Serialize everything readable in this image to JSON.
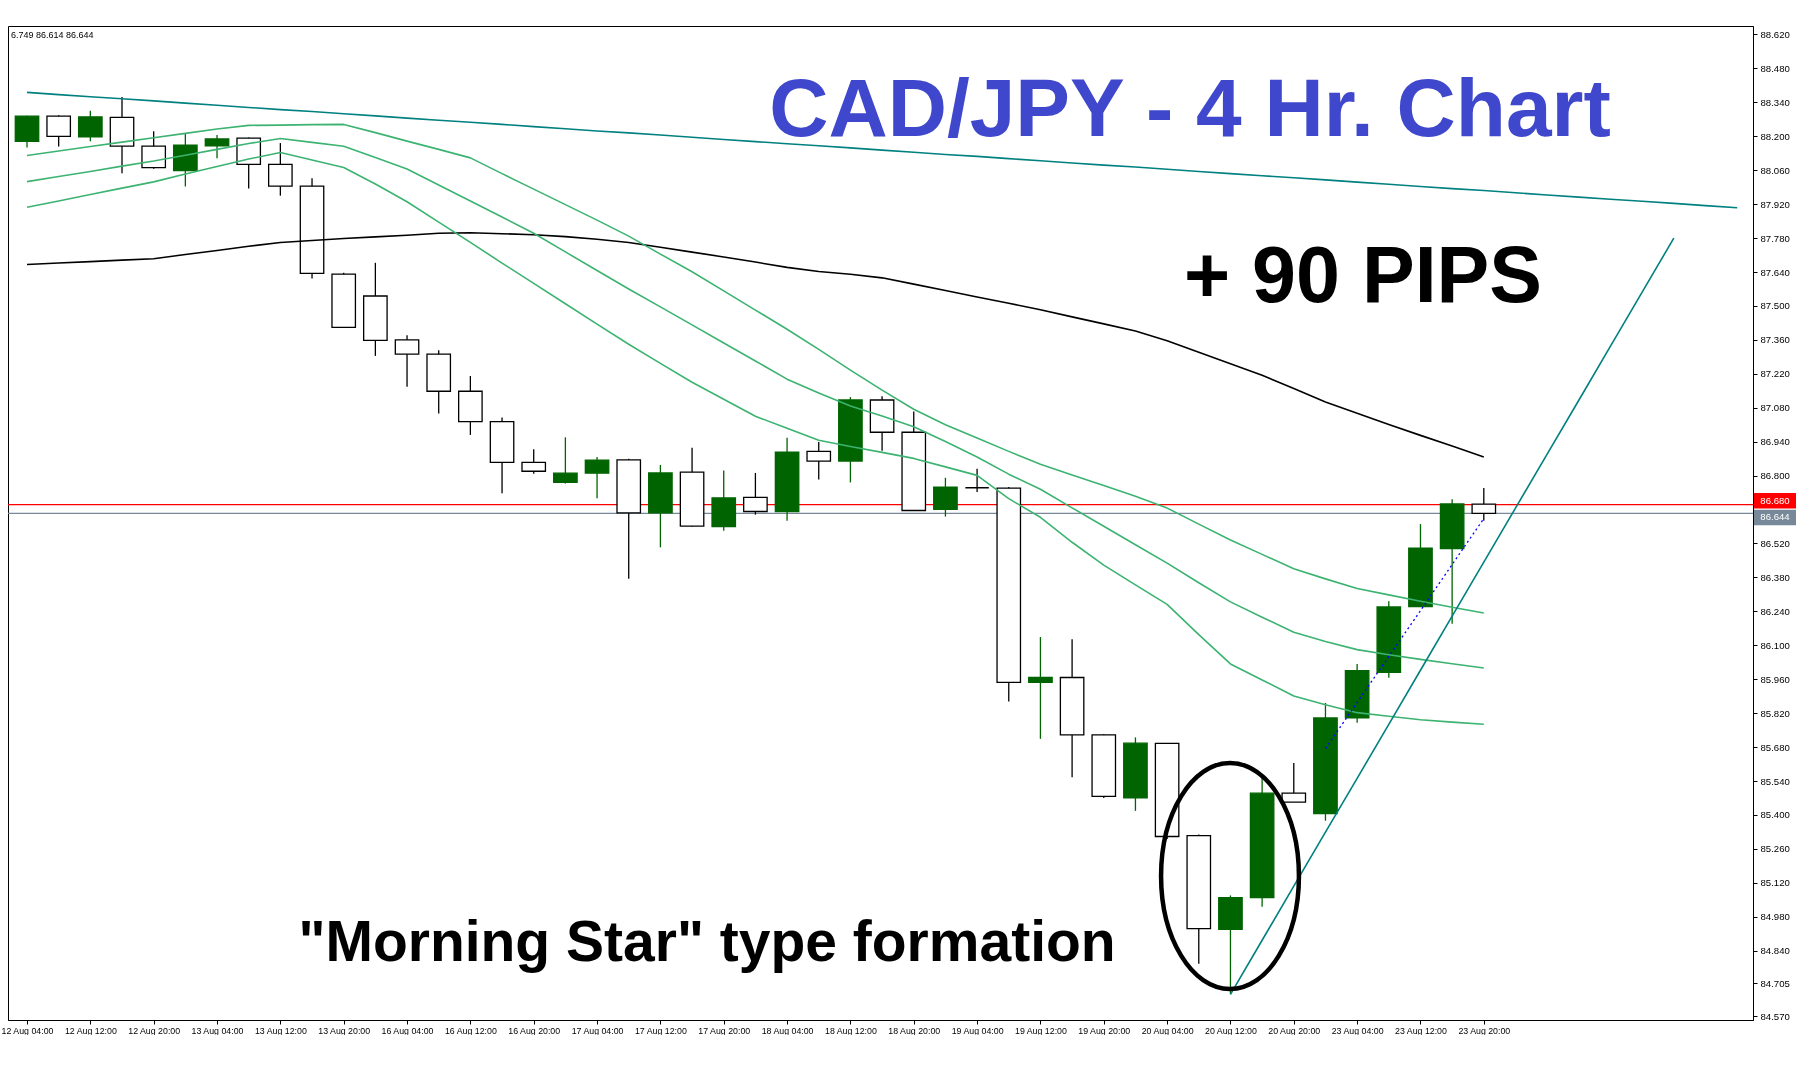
{
  "chart_data": {
    "type": "candlestick",
    "title": "CAD/JPY - 4 Hr. Chart",
    "categories": [
      "12 Aug 04:00",
      null,
      "12 Aug 12:00",
      null,
      "12 Aug 20:00",
      null,
      "13 Aug 04:00",
      null,
      "13 Aug 12:00",
      null,
      "13 Aug 20:00",
      null,
      "16 Aug 04:00",
      null,
      "16 Aug 12:00",
      null,
      "16 Aug 20:00",
      null,
      "17 Aug 04:00",
      null,
      "17 Aug 12:00",
      null,
      "17 Aug 20:00",
      null,
      "18 Aug 04:00",
      null,
      "18 Aug 12:00",
      null,
      "18 Aug 20:00",
      null,
      "19 Aug 04:00",
      null,
      "19 Aug 12:00",
      null,
      "19 Aug 20:00",
      null,
      "20 Aug 04:00",
      null,
      "20 Aug 12:00",
      null,
      "20 Aug 20:00",
      null,
      "23 Aug 04:00",
      null,
      "23 Aug 12:00",
      null,
      "23 Aug 20:00",
      null,
      null,
      null,
      null,
      null,
      null,
      null,
      null
    ],
    "ohlc": [
      [
        88.179,
        88.285,
        88.154,
        88.283
      ],
      [
        88.283,
        88.287,
        88.158,
        88.2
      ],
      [
        88.198,
        88.305,
        88.179,
        88.28
      ],
      [
        88.278,
        88.362,
        88.047,
        88.159
      ],
      [
        88.159,
        88.221,
        88.066,
        88.071
      ],
      [
        88.058,
        88.21,
        87.993,
        88.163
      ],
      [
        88.161,
        88.205,
        88.109,
        88.189
      ],
      [
        88.192,
        88.195,
        87.985,
        88.084
      ],
      [
        88.084,
        88.172,
        87.955,
        87.994
      ],
      [
        87.994,
        88.027,
        87.613,
        87.634
      ],
      [
        87.631,
        87.637,
        87.41,
        87.412
      ],
      [
        87.541,
        87.678,
        87.294,
        87.358
      ],
      [
        87.36,
        87.379,
        87.167,
        87.301
      ],
      [
        87.301,
        87.317,
        87.056,
        87.148
      ],
      [
        87.148,
        87.211,
        86.968,
        87.023
      ],
      [
        87.023,
        87.04,
        86.727,
        86.855
      ],
      [
        86.855,
        86.909,
        86.808,
        86.818
      ],
      [
        86.772,
        86.958,
        86.767,
        86.81
      ],
      [
        86.81,
        86.877,
        86.707,
        86.864
      ],
      [
        86.865,
        86.87,
        86.375,
        86.646
      ],
      [
        86.646,
        86.844,
        86.504,
        86.811
      ],
      [
        86.814,
        86.915,
        86.59,
        86.592
      ],
      [
        86.59,
        86.821,
        86.573,
        86.708
      ],
      [
        86.71,
        86.811,
        86.639,
        86.652
      ],
      [
        86.652,
        86.956,
        86.614,
        86.897
      ],
      [
        86.9,
        86.939,
        86.784,
        86.86
      ],
      [
        86.86,
        87.124,
        86.772,
        87.112
      ],
      [
        87.112,
        87.127,
        86.903,
        86.979
      ],
      [
        86.979,
        87.065,
        86.654,
        86.656
      ],
      [
        86.661,
        86.791,
        86.631,
        86.752
      ],
      [
        86.75,
        86.828,
        86.732,
        86.75
      ],
      [
        86.748,
        86.753,
        85.868,
        85.947
      ],
      [
        85.947,
        86.134,
        85.714,
        85.967
      ],
      [
        85.967,
        86.125,
        85.556,
        85.73
      ],
      [
        85.73,
        85.733,
        85.47,
        85.477
      ],
      [
        85.471,
        85.72,
        85.417,
        85.696
      ],
      [
        85.695,
        85.697,
        85.301,
        85.311
      ],
      [
        85.315,
        85.319,
        84.786,
        84.931
      ],
      [
        84.928,
        85.068,
        84.66,
        85.059
      ],
      [
        85.059,
        85.557,
        85.021,
        85.49
      ],
      [
        85.49,
        85.614,
        85.453,
        85.453
      ],
      [
        85.406,
        85.862,
        85.376,
        85.8
      ],
      [
        85.801,
        86.023,
        85.78,
        85.995
      ],
      [
        85.988,
        86.282,
        85.966,
        86.258
      ],
      [
        86.26,
        86.6,
        86.258,
        86.501
      ],
      [
        86.499,
        86.703,
        86.189,
        86.683
      ],
      [
        86.682,
        86.749,
        86.614,
        86.644
      ],
      null,
      null,
      null,
      null,
      null,
      null,
      null,
      null
    ],
    "colors": [
      "#006400",
      "#ffffff",
      "#006400",
      "#ffffff",
      "#ffffff",
      "#006400",
      "#006400",
      "#ffffff",
      "#ffffff",
      "#ffffff",
      "#ffffff",
      "#ffffff",
      "#ffffff",
      "#ffffff",
      "#ffffff",
      "#ffffff",
      "#ffffff",
      "#006400",
      "#006400",
      "#ffffff",
      "#006400",
      "#ffffff",
      "#006400",
      "#ffffff",
      "#006400",
      "#ffffff",
      "#006400",
      "#ffffff",
      "#ffffff",
      "#006400",
      "#000000",
      "#ffffff",
      "#006400",
      "#ffffff",
      "#ffffff",
      "#006400",
      "#ffffff",
      "#ffffff",
      "#006400",
      "#006400",
      "#ffffff",
      "#006400",
      "#006400",
      "#006400",
      "#006400",
      "#006400",
      "#ffffff",
      null,
      null,
      null,
      null,
      null,
      null,
      null,
      null
    ],
    "series": [
      {
        "type": "line",
        "color": "#008080",
        "values": [
          88.381,
          88.372,
          88.363,
          88.355,
          88.346,
          88.337,
          88.328,
          88.319,
          88.31,
          88.302,
          88.293,
          88.284,
          88.275,
          88.266,
          88.258,
          88.249,
          88.24,
          88.231,
          88.222,
          88.214,
          88.205,
          88.196,
          88.187,
          88.178,
          88.169,
          88.161,
          88.152,
          88.143,
          88.134,
          88.125,
          88.117,
          88.108,
          88.099,
          88.09,
          88.081,
          88.073,
          88.064,
          88.055,
          88.046,
          88.037,
          88.029,
          88.02,
          88.011,
          88.002,
          87.993,
          87.984,
          87.976,
          87.967,
          87.958,
          87.949,
          87.94,
          87.932,
          87.923,
          87.914,
          87.905
        ]
      },
      {
        "type": "line",
        "color": "#000000",
        "values": [
          87.671,
          87.677,
          87.683,
          87.689,
          87.695,
          87.712,
          87.729,
          87.746,
          87.762,
          87.77,
          87.778,
          87.785,
          87.792,
          87.8,
          87.802,
          87.798,
          87.794,
          87.786,
          87.775,
          87.762,
          87.742,
          87.722,
          87.702,
          87.681,
          87.659,
          87.642,
          87.631,
          87.616,
          87.59,
          87.564,
          87.537,
          87.511,
          87.484,
          87.455,
          87.426,
          87.397,
          87.356,
          87.309,
          87.262,
          87.214,
          87.159,
          87.104,
          87.057,
          87.011,
          86.966,
          86.922,
          86.877,
          null,
          null,
          null,
          null,
          null,
          null,
          null,
          null
        ]
      },
      {
        "type": "line",
        "color": "#3cb371",
        "values": [
          88.121,
          88.139,
          88.158,
          88.176,
          88.194,
          88.212,
          88.23,
          88.245,
          88.246,
          88.248,
          88.249,
          88.215,
          88.18,
          88.146,
          88.111,
          88.046,
          87.982,
          87.918,
          87.854,
          87.788,
          87.714,
          87.641,
          87.562,
          87.483,
          87.404,
          87.321,
          87.235,
          87.153,
          87.074,
          87.01,
          86.955,
          86.9,
          86.847,
          86.803,
          86.759,
          86.715,
          86.666,
          86.6,
          86.534,
          86.475,
          86.416,
          86.374,
          86.334,
          86.308,
          86.282,
          86.257,
          86.233,
          null,
          null,
          null,
          null,
          null,
          null,
          null,
          null
        ]
      },
      {
        "type": "line",
        "color": "#3cb371",
        "values": [
          88.013,
          88.034,
          88.055,
          88.077,
          88.098,
          88.122,
          88.146,
          88.17,
          88.191,
          88.175,
          88.159,
          88.112,
          88.065,
          87.999,
          87.933,
          87.867,
          87.8,
          87.723,
          87.646,
          87.57,
          87.496,
          87.422,
          87.347,
          87.273,
          87.198,
          87.141,
          87.087,
          87.046,
          87.002,
          86.941,
          86.877,
          86.806,
          86.744,
          86.667,
          86.591,
          86.515,
          86.439,
          86.358,
          86.279,
          86.216,
          86.154,
          86.116,
          86.082,
          86.061,
          86.042,
          86.024,
          86.006,
          null,
          null,
          null,
          null,
          null,
          null,
          null,
          null
        ]
      },
      {
        "type": "line",
        "color": "#3cb371",
        "values": [
          87.907,
          87.933,
          87.96,
          87.986,
          88.012,
          88.044,
          88.075,
          88.106,
          88.133,
          88.102,
          88.071,
          88.003,
          87.93,
          87.846,
          87.762,
          87.677,
          87.593,
          87.509,
          87.425,
          87.342,
          87.263,
          87.185,
          87.115,
          87.045,
          86.995,
          86.946,
          86.92,
          86.896,
          86.871,
          86.836,
          86.801,
          86.705,
          86.628,
          86.525,
          86.431,
          86.349,
          86.269,
          86.144,
          86.023,
          85.957,
          85.891,
          85.855,
          85.822,
          85.807,
          85.793,
          85.783,
          85.774,
          null,
          null,
          null,
          null,
          null,
          null,
          null,
          null
        ]
      },
      {
        "type": "line",
        "color": "#008080",
        "values": [
          null,
          null,
          null,
          null,
          null,
          null,
          null,
          null,
          null,
          null,
          null,
          null,
          null,
          null,
          null,
          null,
          null,
          null,
          null,
          null,
          null,
          null,
          null,
          null,
          null,
          null,
          null,
          null,
          null,
          null,
          null,
          null,
          null,
          null,
          null,
          null,
          null,
          null,
          84.66,
          84.883,
          85.106,
          85.329,
          85.551,
          85.774,
          85.997,
          86.22,
          86.443,
          86.666,
          86.889,
          87.111,
          87.334,
          87.557,
          87.78,
          null,
          null
        ]
      },
      {
        "type": "line",
        "color": "#0000ff",
        "line_style": "dotted",
        "values": [
          null,
          null,
          null,
          null,
          null,
          null,
          null,
          null,
          null,
          null,
          null,
          null,
          null,
          null,
          null,
          null,
          null,
          null,
          null,
          null,
          null,
          null,
          null,
          null,
          null,
          null,
          null,
          null,
          null,
          null,
          null,
          null,
          null,
          null,
          null,
          null,
          null,
          null,
          null,
          null,
          null,
          85.674,
          85.864,
          86.054,
          86.243,
          86.433,
          86.623,
          null,
          null,
          null,
          null,
          null,
          null,
          null,
          null
        ]
      }
    ],
    "ylim": [
      84.554,
      88.655
    ],
    "yticks": [
      {
        "value": 88.62,
        "label": "88.620"
      },
      {
        "value": 88.48,
        "label": "88.480"
      },
      {
        "value": 88.34,
        "label": "88.340"
      },
      {
        "value": 88.2,
        "label": "88.200"
      },
      {
        "value": 88.06,
        "label": "88.060"
      },
      {
        "value": 87.92,
        "label": "87.920"
      },
      {
        "value": 87.78,
        "label": "87.780"
      },
      {
        "value": 87.64,
        "label": "87.640"
      },
      {
        "value": 87.5,
        "label": "87.500"
      },
      {
        "value": 87.36,
        "label": "87.360"
      },
      {
        "value": 87.22,
        "label": "87.220"
      },
      {
        "value": 87.08,
        "label": "87.080"
      },
      {
        "value": 86.94,
        "label": "86.940"
      },
      {
        "value": 86.8,
        "label": "86.800"
      },
      {
        "value": 86.52,
        "label": "86.520"
      },
      {
        "value": 86.38,
        "label": "86.380"
      },
      {
        "value": 86.24,
        "label": "86.240"
      },
      {
        "value": 86.1,
        "label": "86.100"
      },
      {
        "value": 85.96,
        "label": "85.960"
      },
      {
        "value": 85.82,
        "label": "85.820"
      },
      {
        "value": 85.68,
        "label": "85.680"
      },
      {
        "value": 85.54,
        "label": "85.540"
      },
      {
        "value": 85.4,
        "label": "85.400"
      },
      {
        "value": 85.26,
        "label": "85.260"
      },
      {
        "value": 85.12,
        "label": "85.120"
      },
      {
        "value": 84.98,
        "label": "84.980"
      },
      {
        "value": 84.84,
        "label": "84.840"
      },
      84.705,
      {
        "value": 84.57,
        "label": "84.570"
      }
    ],
    "ref_lines": [
      {
        "axis": "y",
        "value": 86.68,
        "label": "86.680",
        "color": "#ff0000"
      },
      {
        "axis": "y",
        "value": 86.644,
        "label": "86.644",
        "color": "#778899"
      }
    ],
    "annotations": [
      "+ 90 PIPS",
      "\"Morning Star\" type formation",
      "6.749 86.614 86.644"
    ],
    "grid": false
  }
}
